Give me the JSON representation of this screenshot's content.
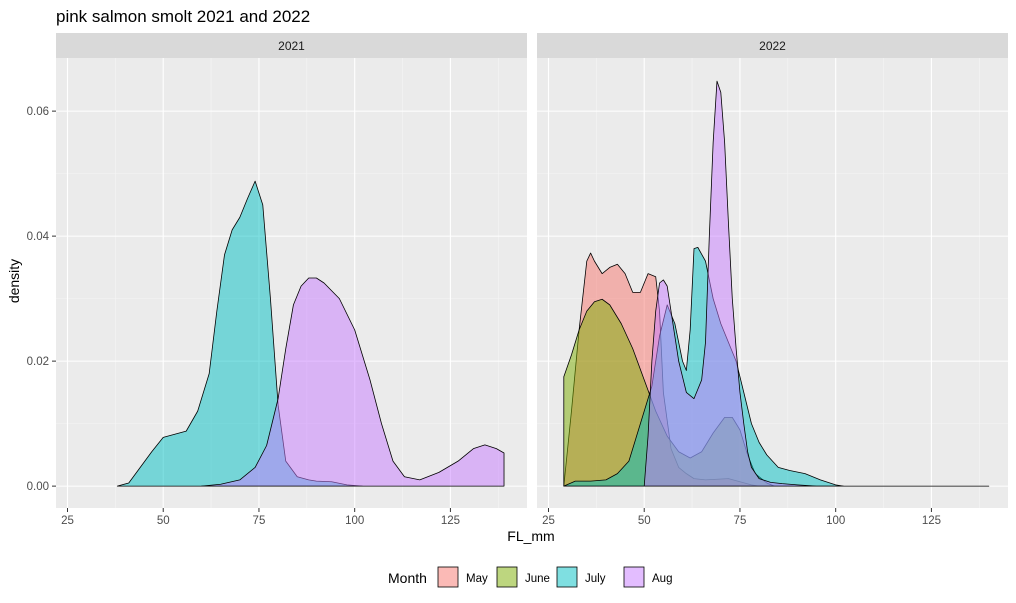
{
  "chart_data": {
    "type": "area",
    "subtype": "density",
    "title": "pink salmon smolt 2021 and 2022",
    "xlabel": "FL_mm",
    "ylabel": "density",
    "xlim": [
      22,
      145
    ],
    "ylim": [
      -0.0035,
      0.0685
    ],
    "x_ticks": [
      25,
      50,
      75,
      100,
      125
    ],
    "y_ticks": [
      0.0,
      0.02,
      0.04,
      0.06
    ],
    "y_tick_labels": [
      "0.00",
      "0.02",
      "0.04",
      "0.06"
    ],
    "grid": true,
    "legend": {
      "title": "Month",
      "position": "bottom",
      "entries": [
        {
          "label": "May",
          "color": "#F8766D"
        },
        {
          "label": "June",
          "color": "#7CAE00"
        },
        {
          "label": "July",
          "color": "#00BFC4"
        },
        {
          "label": "Aug",
          "color": "#C77CFF"
        }
      ]
    },
    "panels": [
      {
        "label": "2021",
        "series": [
          {
            "name": "July",
            "color": "#00BFC4",
            "points": [
              [
                38,
                0
              ],
              [
                41,
                0.0005
              ],
              [
                44,
                0.003
              ],
              [
                47,
                0.0055
              ],
              [
                50,
                0.0078
              ],
              [
                53,
                0.0083
              ],
              [
                56,
                0.0088
              ],
              [
                59,
                0.012
              ],
              [
                62,
                0.018
              ],
              [
                64,
                0.028
              ],
              [
                66,
                0.037
              ],
              [
                68,
                0.041
              ],
              [
                70,
                0.043
              ],
              [
                72,
                0.046
              ],
              [
                74,
                0.0488
              ],
              [
                76,
                0.045
              ],
              [
                78,
                0.03
              ],
              [
                80,
                0.013
              ],
              [
                82,
                0.004
              ],
              [
                85,
                0.0015
              ],
              [
                88,
                0.001
              ],
              [
                90,
                0.0008
              ],
              [
                94,
                0.0007
              ],
              [
                98,
                0.0002
              ],
              [
                102,
                0
              ]
            ]
          },
          {
            "name": "Aug",
            "color": "#C77CFF",
            "points": [
              [
                60,
                0
              ],
              [
                65,
                0.0003
              ],
              [
                70,
                0.001
              ],
              [
                74,
                0.003
              ],
              [
                77,
                0.0065
              ],
              [
                80,
                0.014
              ],
              [
                82,
                0.022
              ],
              [
                84,
                0.029
              ],
              [
                86,
                0.032
              ],
              [
                88,
                0.0333
              ],
              [
                90,
                0.0333
              ],
              [
                92,
                0.0325
              ],
              [
                96,
                0.03
              ],
              [
                100,
                0.025
              ],
              [
                104,
                0.017
              ],
              [
                107,
                0.01
              ],
              [
                110,
                0.004
              ],
              [
                113,
                0.0015
              ],
              [
                117,
                0.001
              ],
              [
                122,
                0.0022
              ],
              [
                127,
                0.004
              ],
              [
                131,
                0.006
              ],
              [
                134,
                0.0066
              ],
              [
                137,
                0.006
              ],
              [
                139,
                0.0053
              ],
              [
                139,
                0
              ]
            ]
          }
        ]
      },
      {
        "label": "2022",
        "series": [
          {
            "name": "May",
            "color": "#F8766D",
            "points": [
              [
                29,
                0
              ],
              [
                31,
                0.012
              ],
              [
                33,
                0.025
              ],
              [
                35,
                0.036
              ],
              [
                36,
                0.0373
              ],
              [
                37,
                0.036
              ],
              [
                39,
                0.034
              ],
              [
                41,
                0.035
              ],
              [
                43,
                0.0355
              ],
              [
                45,
                0.034
              ],
              [
                47,
                0.031
              ],
              [
                49,
                0.031
              ],
              [
                51,
                0.034
              ],
              [
                53,
                0.0335
              ],
              [
                54,
                0.028
              ],
              [
                55,
                0.015
              ],
              [
                57,
                0.006
              ],
              [
                59,
                0.003
              ],
              [
                61,
                0.002
              ],
              [
                63,
                0.0012
              ],
              [
                66,
                0.001
              ],
              [
                69,
                0.0011
              ],
              [
                72,
                0.0012
              ],
              [
                75,
                0.0007
              ],
              [
                78,
                0.0002
              ],
              [
                80,
                0
              ]
            ]
          },
          {
            "name": "June",
            "color": "#7CAE00",
            "points": [
              [
                29,
                0
              ],
              [
                29,
                0.0175
              ],
              [
                31,
                0.021
              ],
              [
                33,
                0.025
              ],
              [
                35,
                0.028
              ],
              [
                37,
                0.0295
              ],
              [
                39,
                0.0299
              ],
              [
                41,
                0.029
              ],
              [
                44,
                0.026
              ],
              [
                47,
                0.022
              ],
              [
                50,
                0.017
              ],
              [
                53,
                0.012
              ],
              [
                56,
                0.008
              ],
              [
                59,
                0.0055
              ],
              [
                62,
                0.0045
              ],
              [
                65,
                0.0055
              ],
              [
                68,
                0.0085
              ],
              [
                71,
                0.011
              ],
              [
                73,
                0.011
              ],
              [
                75,
                0.009
              ],
              [
                77,
                0.005
              ],
              [
                79,
                0.002
              ],
              [
                82,
                0.0005
              ],
              [
                84,
                0
              ]
            ]
          },
          {
            "name": "July",
            "color": "#00BFC4",
            "points": [
              [
                29,
                0
              ],
              [
                32,
                0.0008
              ],
              [
                36,
                0.0008
              ],
              [
                40,
                0.001
              ],
              [
                43,
                0.002
              ],
              [
                46,
                0.004
              ],
              [
                48,
                0.008
              ],
              [
                50,
                0.012
              ],
              [
                52,
                0.016
              ],
              [
                54,
                0.024
              ],
              [
                56,
                0.029
              ],
              [
                58,
                0.026
              ],
              [
                60,
                0.02
              ],
              [
                61,
                0.0185
              ],
              [
                62,
                0.025
              ],
              [
                63,
                0.038
              ],
              [
                64,
                0.0382
              ],
              [
                66,
                0.036
              ],
              [
                68,
                0.03
              ],
              [
                70,
                0.026
              ],
              [
                72,
                0.023
              ],
              [
                74,
                0.02
              ],
              [
                76,
                0.015
              ],
              [
                78,
                0.01
              ],
              [
                80,
                0.007
              ],
              [
                82,
                0.005
              ],
              [
                85,
                0.003
              ],
              [
                88,
                0.0025
              ],
              [
                92,
                0.002
              ],
              [
                96,
                0.001
              ],
              [
                100,
                0.0002
              ],
              [
                102,
                0
              ]
            ]
          },
          {
            "name": "Aug",
            "color": "#C77CFF",
            "points": [
              [
                50,
                0
              ],
              [
                51,
                0.008
              ],
              [
                52,
                0.02
              ],
              [
                53,
                0.028
              ],
              [
                54,
                0.0325
              ],
              [
                55,
                0.033
              ],
              [
                56,
                0.032
              ],
              [
                57,
                0.028
              ],
              [
                58,
                0.024
              ],
              [
                59,
                0.02
              ],
              [
                61,
                0.015
              ],
              [
                63,
                0.014
              ],
              [
                65,
                0.017
              ],
              [
                66,
                0.023
              ],
              [
                67,
                0.04
              ],
              [
                68,
                0.055
              ],
              [
                69,
                0.0648
              ],
              [
                70,
                0.063
              ],
              [
                71,
                0.055
              ],
              [
                72,
                0.042
              ],
              [
                73,
                0.03
              ],
              [
                74,
                0.022
              ],
              [
                75,
                0.015
              ],
              [
                76,
                0.01
              ],
              [
                77,
                0.0055
              ],
              [
                78,
                0.003
              ],
              [
                80,
                0.0012
              ],
              [
                83,
                0.0006
              ],
              [
                86,
                0.0004
              ],
              [
                90,
                0.0002
              ],
              [
                95,
                0
              ],
              [
                100,
                0
              ],
              [
                110,
                0
              ],
              [
                120,
                0
              ],
              [
                130,
                0
              ],
              [
                140,
                0
              ]
            ]
          }
        ]
      }
    ]
  }
}
